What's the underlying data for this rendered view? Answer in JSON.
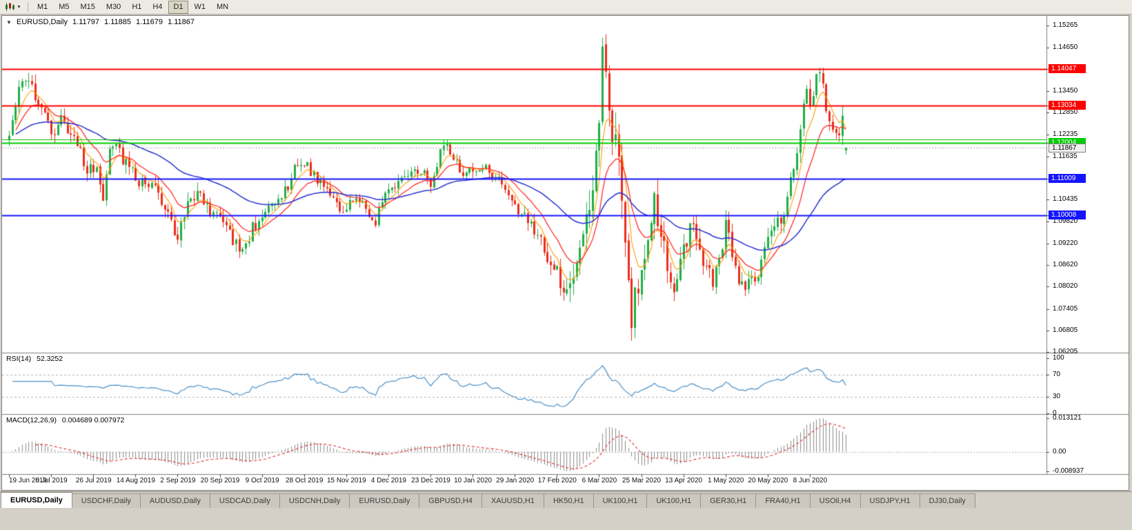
{
  "toolbar": {
    "chart_type_tooltip": "Charts",
    "timeframes": [
      "M1",
      "M5",
      "M15",
      "M30",
      "H1",
      "H4",
      "D1",
      "W1",
      "MN"
    ],
    "active_timeframe": "D1"
  },
  "chart": {
    "header": {
      "symbol": "EURUSD,Daily",
      "open": "1.11797",
      "high": "1.11885",
      "low": "1.11679",
      "close": "1.11867"
    },
    "rsi": {
      "name": "RSI(14)",
      "value": "52.3252"
    },
    "macd": {
      "name": "MACD(12,26,9)",
      "value": "0.004689 0.007972"
    }
  },
  "chart_data": {
    "type": "candlestick",
    "title": "EURUSD,Daily",
    "symbol": "EURUSD",
    "timeframe": "Daily",
    "bar_count": 259,
    "bars_per_label": 13,
    "seed": 11,
    "x_labels": [
      "19 Jun 2019",
      "8 Jul 2019",
      "26 Jul 2019",
      "14 Aug 2019",
      "2 Sep 2019",
      "20 Sep 2019",
      "9 Oct 2019",
      "28 Oct 2019",
      "15 Nov 2019",
      "4 Dec 2019",
      "23 Dec 2019",
      "10 Jan 2020",
      "29 Jan 2020",
      "17 Feb 2020",
      "6 Mar 2020",
      "25 Mar 2020",
      "13 Apr 2020",
      "1 May 2020",
      "20 May 2020",
      "8 Jun 2020"
    ],
    "price_axis": {
      "min": 1.0619,
      "max": 1.1553,
      "ticks": [
        "1.15265",
        "1.14650",
        "1.13450",
        "1.12850",
        "1.12235",
        "1.11635",
        "1.10435",
        "1.09820",
        "1.09220",
        "1.08620",
        "1.08020",
        "1.07405",
        "1.06805",
        "1.06205"
      ]
    },
    "hlines": [
      {
        "value": 1.14047,
        "label": "1.14047",
        "color": "#ff0000",
        "width": 2
      },
      {
        "value": 1.13034,
        "label": "1.13034",
        "color": "#ff0000",
        "width": 2
      },
      {
        "value": 1.1211,
        "label": null,
        "color": "#00c000",
        "width": 1
      },
      {
        "value": 1.12004,
        "label": "1.12004",
        "color": "#00cc00",
        "width": 2
      },
      {
        "value": 1.11009,
        "label": "1.11009",
        "color": "#1414ff",
        "width": 2
      },
      {
        "value": 1.10008,
        "label": "1.10008",
        "color": "#1414ff",
        "width": 2
      }
    ],
    "current_price": {
      "value": 1.11867,
      "label": "1.11867"
    },
    "current_bar": {
      "open": 1.11797,
      "high": 1.11885,
      "low": 1.11679,
      "close": 1.11867
    },
    "close_anchors": [
      [
        0,
        1.122
      ],
      [
        2,
        1.13
      ],
      [
        4,
        1.1385
      ],
      [
        6,
        1.137
      ],
      [
        9,
        1.132
      ],
      [
        13,
        1.1225
      ],
      [
        16,
        1.1268
      ],
      [
        20,
        1.1215
      ],
      [
        24,
        1.113
      ],
      [
        27,
        1.1115
      ],
      [
        29,
        1.1045
      ],
      [
        31,
        1.1195
      ],
      [
        34,
        1.1175
      ],
      [
        39,
        1.11
      ],
      [
        44,
        1.1085
      ],
      [
        48,
        1.103
      ],
      [
        52,
        1.093
      ],
      [
        55,
        1.104
      ],
      [
        58,
        1.1065
      ],
      [
        62,
        1.1005
      ],
      [
        65,
        1.1015
      ],
      [
        68,
        1.0945
      ],
      [
        72,
        1.089
      ],
      [
        75,
        1.0965
      ],
      [
        78,
        1.0985
      ],
      [
        82,
        1.104
      ],
      [
        86,
        1.1075
      ],
      [
        89,
        1.115
      ],
      [
        91,
        1.1152
      ],
      [
        94,
        1.111
      ],
      [
        98,
        1.107
      ],
      [
        102,
        1.102
      ],
      [
        104,
        1.1015
      ],
      [
        107,
        1.106
      ],
      [
        110,
        1.1012
      ],
      [
        113,
        1.0985
      ],
      [
        117,
        1.1078
      ],
      [
        121,
        1.11
      ],
      [
        125,
        1.113
      ],
      [
        128,
        1.1115
      ],
      [
        130,
        1.109
      ],
      [
        134,
        1.1205
      ],
      [
        137,
        1.116
      ],
      [
        140,
        1.1112
      ],
      [
        143,
        1.1122
      ],
      [
        147,
        1.113
      ],
      [
        151,
        1.1092
      ],
      [
        156,
        1.1022
      ],
      [
        160,
        1.099
      ],
      [
        163,
        1.0948
      ],
      [
        166,
        1.0868
      ],
      [
        169,
        1.0838
      ],
      [
        171,
        1.0792
      ],
      [
        173,
        1.0808
      ],
      [
        175,
        1.0852
      ],
      [
        178,
        1.099
      ],
      [
        181,
        1.114
      ],
      [
        183,
        1.1452
      ],
      [
        185,
        1.131
      ],
      [
        187,
        1.119
      ],
      [
        189,
        1.1075
      ],
      [
        191,
        1.081
      ],
      [
        192,
        1.069
      ],
      [
        193,
        1.0768
      ],
      [
        195,
        1.0852
      ],
      [
        197,
        1.0962
      ],
      [
        199,
        1.103
      ],
      [
        201,
        1.0958
      ],
      [
        203,
        1.0862
      ],
      [
        205,
        1.08
      ],
      [
        207,
        1.089
      ],
      [
        208,
        1.0915
      ],
      [
        211,
        1.0975
      ],
      [
        214,
        1.0872
      ],
      [
        217,
        1.0822
      ],
      [
        219,
        1.0872
      ],
      [
        221,
        1.0978
      ],
      [
        223,
        1.0902
      ],
      [
        225,
        1.08
      ],
      [
        228,
        1.0812
      ],
      [
        231,
        1.0822
      ],
      [
        233,
        1.092
      ],
      [
        234,
        1.0952
      ],
      [
        236,
        1.0978
      ],
      [
        239,
        1.0998
      ],
      [
        242,
        1.1135
      ],
      [
        244,
        1.1248
      ],
      [
        246,
        1.133
      ],
      [
        247,
        1.1298
      ],
      [
        249,
        1.1378
      ],
      [
        250,
        1.14
      ],
      [
        252,
        1.1302
      ],
      [
        254,
        1.1258
      ],
      [
        256,
        1.122
      ],
      [
        257,
        1.1258
      ],
      [
        258,
        1.11867
      ]
    ],
    "volatility_anchors": [
      [
        0,
        0.0045
      ],
      [
        20,
        0.004
      ],
      [
        60,
        0.0042
      ],
      [
        100,
        0.0034
      ],
      [
        140,
        0.003
      ],
      [
        160,
        0.0038
      ],
      [
        170,
        0.0052
      ],
      [
        180,
        0.0095
      ],
      [
        186,
        0.0105
      ],
      [
        196,
        0.0085
      ],
      [
        205,
        0.0062
      ],
      [
        215,
        0.0048
      ],
      [
        230,
        0.0042
      ],
      [
        245,
        0.0052
      ],
      [
        258,
        0.0048
      ]
    ],
    "moving_averages": {
      "fast_orange_period": 6,
      "mid_red_period": 14,
      "slow_blue_period": 50
    },
    "rsi": {
      "period": 14,
      "value": 52.3252,
      "ticks": [
        "100",
        "70",
        "30",
        "0"
      ],
      "levels": [
        70,
        30
      ]
    },
    "macd": {
      "fast": 12,
      "slow": 26,
      "signal": 9,
      "values": [
        0.004689,
        0.007972
      ],
      "ticks": [
        "0.013121",
        "0.00",
        "-0.008937"
      ]
    }
  },
  "tabs": {
    "active_index": 0,
    "items": [
      "EURUSD,Daily",
      "USDCHF,Daily",
      "AUDUSD,Daily",
      "USDCAD,Daily",
      "USDCNH,Daily",
      "EURUSD,Daily",
      "GBPUSD,H4",
      "XAUUSD,H1",
      "HK50,H1",
      "UK100,H1",
      "UK100,H1",
      "GER30,H1",
      "FRA40,H1",
      "USOil,H4",
      "USDJPY,H1",
      "DJ30,Daily"
    ]
  },
  "colors": {
    "up": "#1fae45",
    "down": "#ec2c1b",
    "ma_fast": "#ff9c00",
    "ma_mid": "#ff2a2a",
    "ma_slow": "#2730cf",
    "rsi_line": "#4a8fc7",
    "rsi_level": "#b4b4b4",
    "macd_hist": "#8c8c8c",
    "macd_signal": "#e03030",
    "divider": "#808080",
    "current_line": "#aaaaaa"
  }
}
